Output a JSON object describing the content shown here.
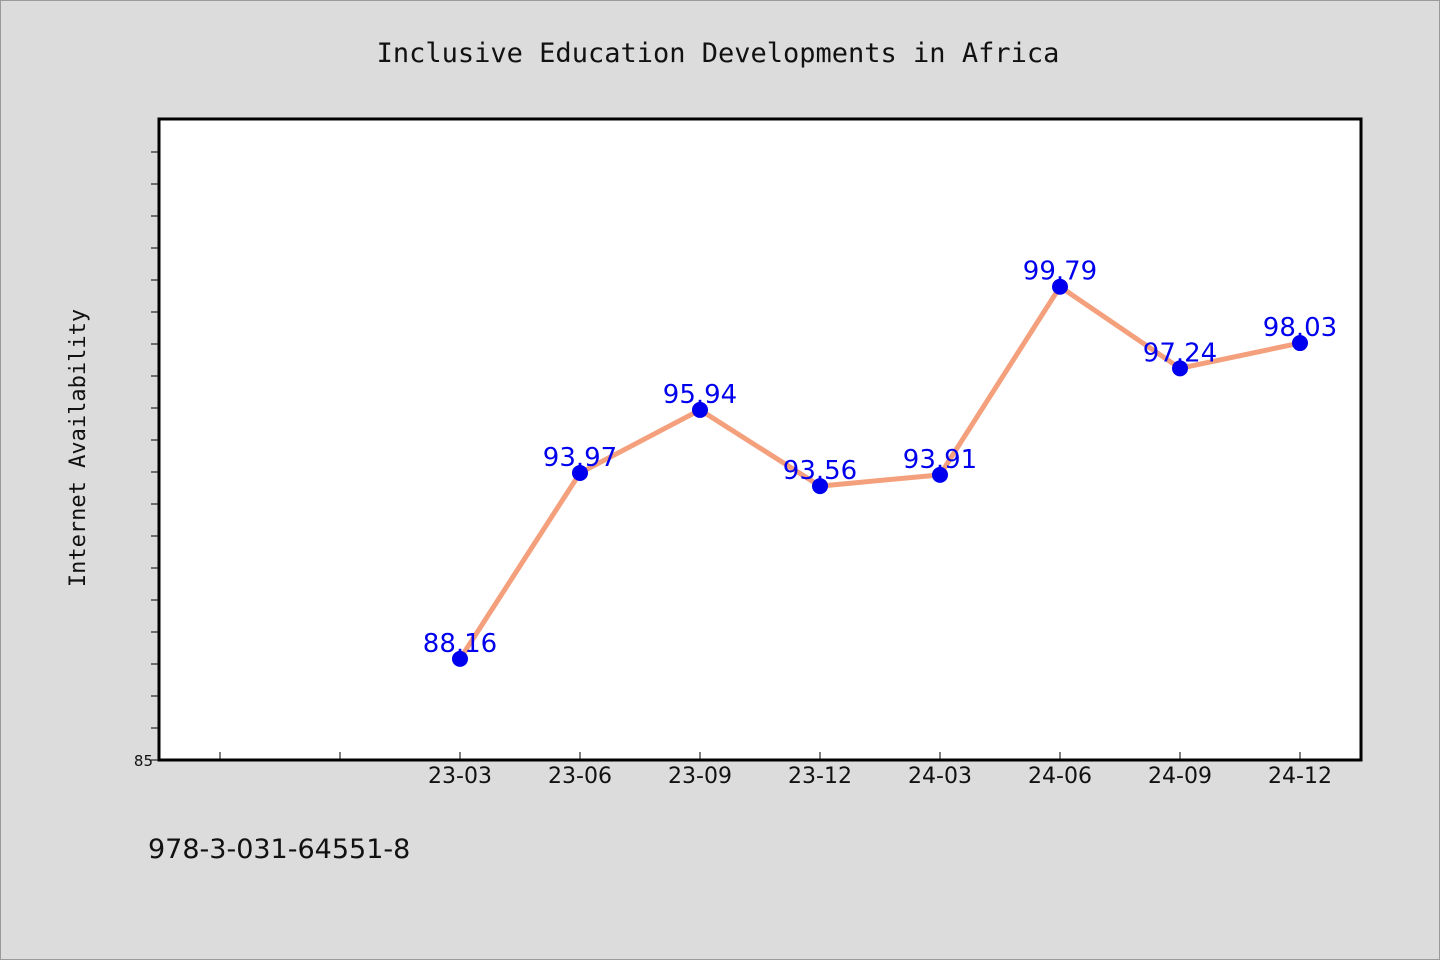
{
  "chart_data": {
    "type": "line",
    "title": "Inclusive Education Developments in Africa",
    "xlabel": "",
    "ylabel": "Internet Availability",
    "categories": [
      "23-03",
      "23-06",
      "23-09",
      "23-12",
      "24-03",
      "24-06",
      "24-09",
      "24-12"
    ],
    "series": [
      {
        "values": [
          88.16,
          93.97,
          95.94,
          93.56,
          93.91,
          99.79,
          97.24,
          98.03
        ]
      }
    ],
    "data_labels": [
      "88.16",
      "93.97",
      "95.94",
      "93.56",
      "93.91",
      "99.79",
      "97.24",
      "98.03"
    ],
    "ylim": [
      85,
      105
    ],
    "y_tick_labels": [
      "85"
    ],
    "grid": false,
    "legend": "none",
    "colors": {
      "line": "#f4a07c",
      "marker": "#0000ee",
      "label": "#0000ee",
      "background": "#dcdcdc",
      "plot_background": "#ffffff"
    }
  },
  "footer": {
    "code": "978-3-031-64551-8"
  }
}
